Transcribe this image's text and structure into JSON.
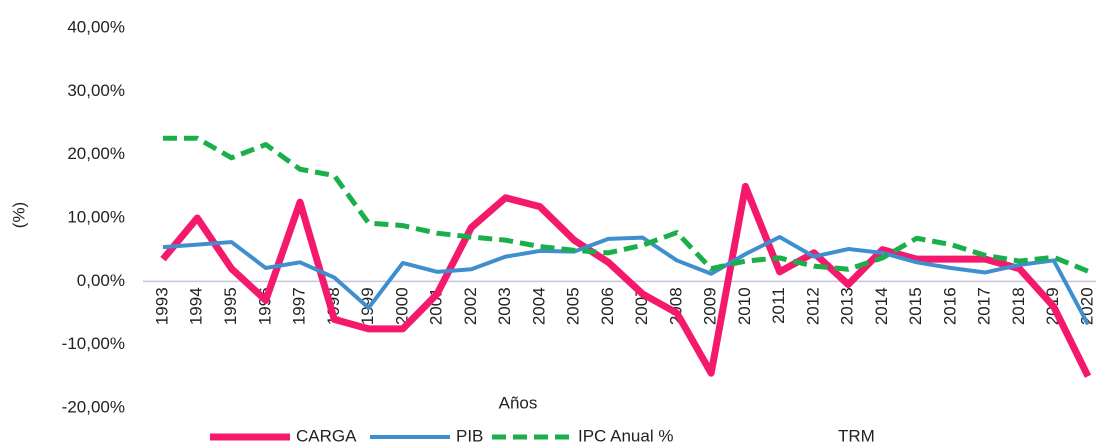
{
  "chart_data": {
    "type": "line",
    "x_label": "Años",
    "y_label": "(%)",
    "categories": [
      "1993",
      "1994",
      "1995",
      "1996",
      "1997",
      "1998",
      "1999",
      "2000",
      "2001",
      "2002",
      "2003",
      "2004",
      "2005",
      "2006",
      "2007",
      "2008",
      "2009",
      "2010",
      "2011",
      "2012",
      "2013",
      "2014",
      "2015",
      "2016",
      "2017",
      "2018",
      "2019",
      "2020"
    ],
    "series": [
      {
        "name": "CARGA",
        "color": "#f5196e",
        "width": 7,
        "dash": false,
        "values": [
          3.5,
          10,
          2,
          -3,
          12.5,
          -6,
          -7.5,
          -7.5,
          -2,
          8.5,
          13.2,
          11.8,
          6.5,
          3,
          -2,
          -5,
          -14.5,
          15,
          1.5,
          4.5,
          -0.5,
          5,
          3.5,
          3.5,
          3.5,
          2,
          -4,
          -15
        ]
      },
      {
        "name": "PIB",
        "color": "#3f8fcf",
        "width": 4,
        "dash": false,
        "values": [
          5.4,
          5.8,
          6.2,
          2.1,
          3.0,
          0.6,
          -4.2,
          2.9,
          1.5,
          1.9,
          3.9,
          4.8,
          4.7,
          6.7,
          6.9,
          3.3,
          1.2,
          4.3,
          7.0,
          3.9,
          5.1,
          4.5,
          3.0,
          2.1,
          1.4,
          2.6,
          3.3,
          -6.8
        ]
      },
      {
        "name": "IPC Anual %",
        "color": "#1aaf4b",
        "width": 5,
        "dash": true,
        "values": [
          22.6,
          22.6,
          19.5,
          21.6,
          17.7,
          16.7,
          9.2,
          8.8,
          7.6,
          7.0,
          6.5,
          5.5,
          4.9,
          4.5,
          5.7,
          7.7,
          2.0,
          3.2,
          3.7,
          2.4,
          1.9,
          3.7,
          6.8,
          5.8,
          4.1,
          3.2,
          3.8,
          1.6
        ]
      },
      {
        "name": "TRM",
        "color": "none",
        "width": 4,
        "dash": false,
        "values": [
          null,
          null,
          null,
          null,
          null,
          null,
          null,
          null,
          null,
          null,
          null,
          null,
          null,
          null,
          null,
          null,
          null,
          null,
          null,
          null,
          null,
          null,
          null,
          null,
          null,
          null,
          null,
          null
        ]
      }
    ],
    "ylim": [
      -20,
      40
    ],
    "yticks": [
      {
        "value": -20,
        "label": "-20,00%"
      },
      {
        "value": -10,
        "label": "-10,00%"
      },
      {
        "value": 0,
        "label": "0,00%"
      },
      {
        "value": 10,
        "label": "10,00%"
      },
      {
        "value": 20,
        "label": "20,00%"
      },
      {
        "value": 30,
        "label": "30,00%"
      },
      {
        "value": 40,
        "label": "40,00%"
      }
    ],
    "grid": false,
    "legend": "bottom"
  }
}
